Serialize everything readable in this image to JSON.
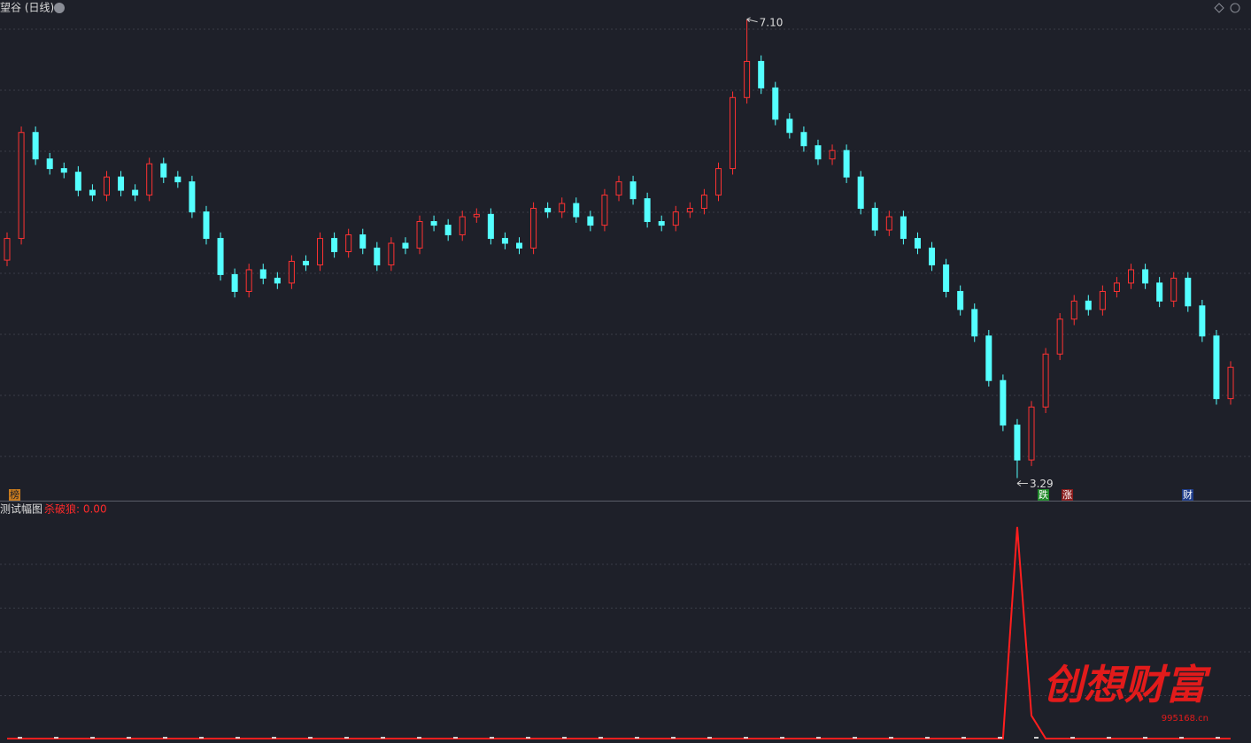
{
  "chart_data": [
    {
      "type": "candlestick",
      "title": "望谷 (日线)",
      "open": [
        5.1,
        5.28,
        6.16,
        5.94,
        5.86,
        5.83,
        5.68,
        5.64,
        5.79,
        5.68,
        5.64,
        5.9,
        5.79,
        5.75,
        5.5,
        5.28,
        4.98,
        4.84,
        5.02,
        4.95,
        4.91,
        5.09,
        5.06,
        5.28,
        5.17,
        5.31,
        5.2,
        5.06,
        5.24,
        5.2,
        5.42,
        5.39,
        5.31,
        5.46,
        5.48,
        5.28,
        5.24,
        5.2,
        5.53,
        5.5,
        5.57,
        5.46,
        5.39,
        5.64,
        5.75,
        5.61,
        5.42,
        5.39,
        5.5,
        5.53,
        5.64,
        5.86,
        6.45,
        6.75,
        6.53,
        6.27,
        6.16,
        6.05,
        5.94,
        6.01,
        5.79,
        5.53,
        5.35,
        5.46,
        5.28,
        5.2,
        5.06,
        4.84,
        4.69,
        4.47,
        4.1,
        3.73,
        3.44,
        3.88,
        4.32,
        4.61,
        4.76,
        4.69,
        4.84,
        4.91,
        5.02,
        4.91,
        4.76,
        4.95,
        4.72,
        4.47,
        3.95
      ],
      "high": [
        5.33,
        6.21,
        6.21,
        5.99,
        5.91,
        5.88,
        5.73,
        5.84,
        5.84,
        5.73,
        5.95,
        5.95,
        5.84,
        5.8,
        5.55,
        5.33,
        5.03,
        5.07,
        5.07,
        5.0,
        5.14,
        5.14,
        5.33,
        5.33,
        5.36,
        5.36,
        5.25,
        5.29,
        5.29,
        5.47,
        5.47,
        5.44,
        5.51,
        5.53,
        5.53,
        5.33,
        5.29,
        5.58,
        5.58,
        5.62,
        5.62,
        5.51,
        5.69,
        5.8,
        5.8,
        5.66,
        5.47,
        5.55,
        5.58,
        5.69,
        5.91,
        6.5,
        7.1,
        6.8,
        6.58,
        6.32,
        6.21,
        6.1,
        6.06,
        6.06,
        5.84,
        5.58,
        5.51,
        5.51,
        5.33,
        5.25,
        5.11,
        4.89,
        4.74,
        4.52,
        4.15,
        3.78,
        3.93,
        4.37,
        4.66,
        4.81,
        4.81,
        4.89,
        4.96,
        5.07,
        5.07,
        4.96,
        5.0,
        5.0,
        4.77,
        4.52,
        4.26
      ],
      "low": [
        5.05,
        5.23,
        5.89,
        5.81,
        5.78,
        5.63,
        5.59,
        5.59,
        5.63,
        5.59,
        5.59,
        5.74,
        5.7,
        5.45,
        5.23,
        4.93,
        4.79,
        4.79,
        4.9,
        4.86,
        4.86,
        5.01,
        5.01,
        5.12,
        5.12,
        5.15,
        5.01,
        5.01,
        5.15,
        5.15,
        5.34,
        5.26,
        5.26,
        5.41,
        5.23,
        5.19,
        5.15,
        5.15,
        5.45,
        5.45,
        5.41,
        5.34,
        5.34,
        5.59,
        5.56,
        5.37,
        5.34,
        5.34,
        5.45,
        5.48,
        5.59,
        5.81,
        6.4,
        6.48,
        6.22,
        6.11,
        6.0,
        5.89,
        5.89,
        5.74,
        5.48,
        5.3,
        5.3,
        5.23,
        5.15,
        5.01,
        4.79,
        4.64,
        4.42,
        4.05,
        3.68,
        3.29,
        3.39,
        3.83,
        4.27,
        4.56,
        4.64,
        4.64,
        4.79,
        4.86,
        4.86,
        4.71,
        4.71,
        4.67,
        4.42,
        3.9,
        3.9
      ],
      "close": [
        5.28,
        6.16,
        5.94,
        5.86,
        5.83,
        5.68,
        5.64,
        5.79,
        5.68,
        5.64,
        5.9,
        5.79,
        5.75,
        5.5,
        5.28,
        4.98,
        4.84,
        5.02,
        4.95,
        4.91,
        5.09,
        5.06,
        5.28,
        5.17,
        5.31,
        5.2,
        5.06,
        5.24,
        5.2,
        5.42,
        5.39,
        5.31,
        5.46,
        5.48,
        5.28,
        5.24,
        5.2,
        5.53,
        5.5,
        5.57,
        5.46,
        5.39,
        5.64,
        5.75,
        5.61,
        5.42,
        5.39,
        5.5,
        5.53,
        5.64,
        5.86,
        6.45,
        6.75,
        6.53,
        6.27,
        6.16,
        6.05,
        5.94,
        6.01,
        5.79,
        5.53,
        5.35,
        5.46,
        5.28,
        5.2,
        5.06,
        4.84,
        4.69,
        4.47,
        4.1,
        3.73,
        3.44,
        3.88,
        4.32,
        4.61,
        4.76,
        4.69,
        4.84,
        4.91,
        5.02,
        4.91,
        4.76,
        4.95,
        4.72,
        4.47,
        3.95,
        4.21
      ],
      "ylim": [
        3.11,
        7.26
      ],
      "up_color": "#ff3232",
      "down_color": "#54ffff",
      "grid": true,
      "max_label": {
        "value": 7.1,
        "label": "7.10"
      },
      "min_label": {
        "value": 3.29,
        "label": "3.29"
      }
    },
    {
      "type": "line",
      "title": "测试幅图",
      "legend": {
        "value": 0,
        "label": "杀破狼: 0.00"
      },
      "color": "#ff1e1e",
      "values": [
        0,
        0,
        0,
        0,
        0,
        0,
        0,
        0,
        0,
        0,
        0,
        0,
        0,
        0,
        0,
        0,
        0,
        0,
        0,
        0,
        0,
        0,
        0,
        0,
        0,
        0,
        0,
        0,
        0,
        0,
        0,
        0,
        0,
        0,
        0,
        0,
        0,
        0,
        0,
        0,
        0,
        0,
        0,
        0,
        0,
        0,
        0,
        0,
        0,
        0,
        0,
        0,
        0,
        0,
        0,
        0,
        0,
        0,
        0,
        0,
        0,
        0,
        0,
        0,
        0,
        0,
        0,
        0,
        0,
        0,
        0,
        92,
        10,
        0,
        0,
        0,
        0,
        0,
        0,
        0,
        0,
        0,
        0,
        0,
        0,
        0,
        0
      ],
      "ylim": [
        0,
        100
      ],
      "grid": true
    }
  ],
  "signals": [
    "榜",
    "跌",
    "涨",
    "财"
  ],
  "watermark": {
    "title": "创想财富",
    "site": "995168.cn"
  }
}
